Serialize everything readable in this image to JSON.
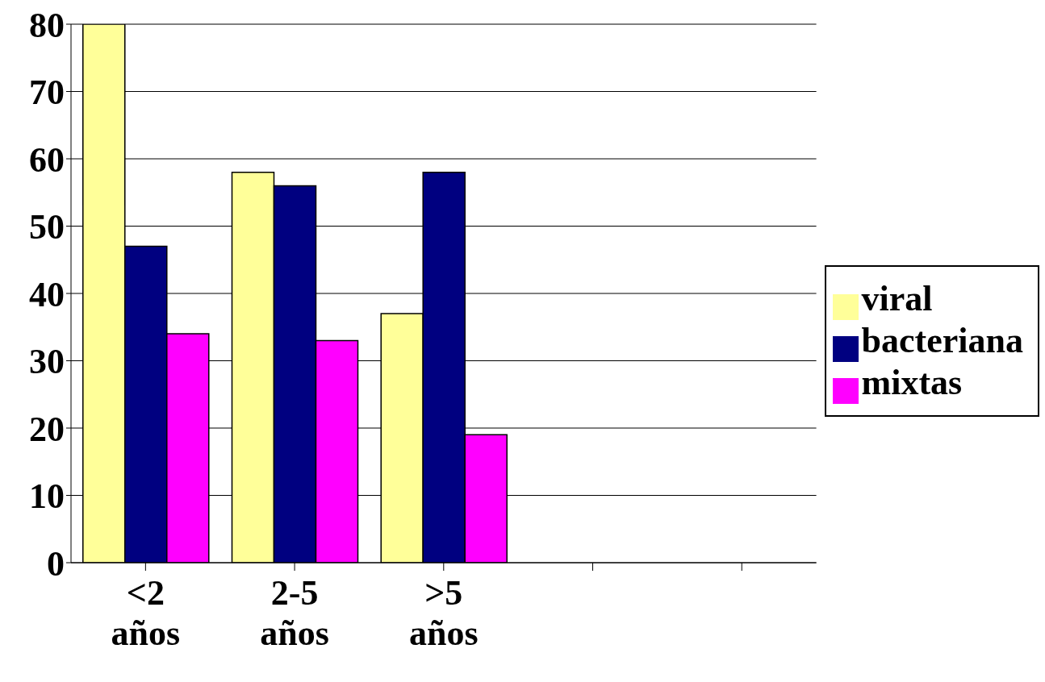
{
  "chart_data": {
    "type": "bar",
    "categories": [
      "<2 años",
      "2-5 años",
      ">5 años",
      null,
      null
    ],
    "series": [
      {
        "name": "viral",
        "color": "#ffff99",
        "values": [
          80,
          58,
          37,
          null,
          null
        ]
      },
      {
        "name": "bacteriana",
        "color": "#000080",
        "values": [
          47,
          56,
          58,
          null,
          null
        ]
      },
      {
        "name": "mixtas",
        "color": "#ff00ff",
        "values": [
          34,
          33,
          19,
          null,
          null
        ]
      }
    ],
    "ylim": [
      0,
      80
    ],
    "yticks": [
      0,
      10,
      20,
      30,
      40,
      50,
      60,
      70,
      80
    ],
    "grid": "y",
    "legend": "right"
  }
}
